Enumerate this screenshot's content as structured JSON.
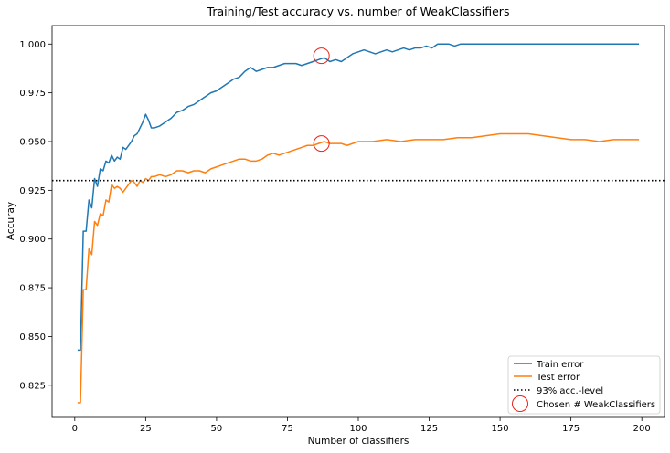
{
  "chart_data": {
    "type": "line",
    "title": "Training/Test accuracy vs. number of WeakClassifiers",
    "xlabel": "Number of classifiers",
    "ylabel": "Accuray",
    "xlim": [
      -8,
      208
    ],
    "ylim": [
      0.8085,
      1.0095
    ],
    "xticks": [
      0,
      25,
      50,
      75,
      100,
      125,
      150,
      175,
      200
    ],
    "yticks": [
      0.825,
      0.85,
      0.875,
      0.9,
      0.925,
      0.95,
      0.975,
      1.0
    ],
    "ytick_labels": [
      "0.825",
      "0.850",
      "0.875",
      "0.900",
      "0.925",
      "0.950",
      "0.975",
      "1.000"
    ],
    "grid": false,
    "legend_position": "lower-right",
    "series": [
      {
        "name": "Train error",
        "color": "#1f77b4",
        "x": [
          1,
          2,
          3,
          4,
          5,
          6,
          7,
          8,
          9,
          10,
          11,
          12,
          13,
          14,
          15,
          16,
          17,
          18,
          19,
          20,
          21,
          22,
          23,
          24,
          25,
          26,
          27,
          28,
          30,
          32,
          34,
          36,
          38,
          40,
          42,
          44,
          46,
          48,
          50,
          52,
          54,
          56,
          58,
          60,
          62,
          64,
          66,
          68,
          70,
          72,
          74,
          76,
          78,
          80,
          82,
          84,
          86,
          88,
          90,
          92,
          94,
          96,
          98,
          100,
          102,
          104,
          106,
          108,
          110,
          112,
          114,
          116,
          118,
          120,
          122,
          124,
          126,
          128,
          130,
          132,
          134,
          136,
          138,
          140,
          160,
          180,
          199
        ],
        "values": [
          0.843,
          0.843,
          0.904,
          0.904,
          0.92,
          0.916,
          0.931,
          0.927,
          0.936,
          0.935,
          0.94,
          0.939,
          0.943,
          0.94,
          0.942,
          0.941,
          0.947,
          0.946,
          0.948,
          0.95,
          0.953,
          0.954,
          0.957,
          0.96,
          0.964,
          0.961,
          0.957,
          0.957,
          0.958,
          0.96,
          0.962,
          0.965,
          0.966,
          0.968,
          0.969,
          0.971,
          0.973,
          0.975,
          0.976,
          0.978,
          0.98,
          0.982,
          0.983,
          0.986,
          0.988,
          0.986,
          0.987,
          0.988,
          0.988,
          0.989,
          0.99,
          0.99,
          0.99,
          0.989,
          0.99,
          0.991,
          0.992,
          0.993,
          0.991,
          0.992,
          0.991,
          0.993,
          0.995,
          0.996,
          0.997,
          0.996,
          0.995,
          0.996,
          0.997,
          0.996,
          0.997,
          0.998,
          0.997,
          0.998,
          0.998,
          0.999,
          0.998,
          1.0,
          1.0,
          1.0,
          0.999,
          1.0,
          1.0,
          1.0,
          1.0,
          1.0,
          1.0
        ]
      },
      {
        "name": "Test error",
        "color": "#ff7f0e",
        "x": [
          1,
          2,
          3,
          4,
          5,
          6,
          7,
          8,
          9,
          10,
          11,
          12,
          13,
          14,
          15,
          16,
          17,
          18,
          19,
          20,
          21,
          22,
          23,
          24,
          25,
          26,
          27,
          28,
          30,
          32,
          34,
          36,
          38,
          40,
          42,
          44,
          46,
          48,
          50,
          52,
          54,
          56,
          58,
          60,
          62,
          64,
          66,
          68,
          70,
          72,
          74,
          76,
          78,
          80,
          82,
          84,
          86,
          88,
          90,
          92,
          94,
          96,
          98,
          100,
          105,
          110,
          115,
          120,
          125,
          130,
          135,
          140,
          145,
          150,
          155,
          160,
          165,
          170,
          175,
          180,
          185,
          190,
          195,
          199
        ],
        "values": [
          0.816,
          0.816,
          0.874,
          0.874,
          0.895,
          0.892,
          0.909,
          0.907,
          0.913,
          0.912,
          0.92,
          0.919,
          0.928,
          0.926,
          0.927,
          0.926,
          0.924,
          0.926,
          0.928,
          0.93,
          0.929,
          0.927,
          0.93,
          0.929,
          0.931,
          0.93,
          0.932,
          0.932,
          0.933,
          0.932,
          0.933,
          0.935,
          0.935,
          0.934,
          0.935,
          0.935,
          0.934,
          0.936,
          0.937,
          0.938,
          0.939,
          0.94,
          0.941,
          0.941,
          0.94,
          0.94,
          0.941,
          0.943,
          0.944,
          0.943,
          0.944,
          0.945,
          0.946,
          0.947,
          0.948,
          0.948,
          0.949,
          0.95,
          0.949,
          0.949,
          0.949,
          0.948,
          0.949,
          0.95,
          0.95,
          0.951,
          0.95,
          0.951,
          0.951,
          0.951,
          0.952,
          0.952,
          0.953,
          0.954,
          0.954,
          0.954,
          0.953,
          0.952,
          0.951,
          0.951,
          0.95,
          0.951,
          0.951,
          0.951
        ]
      }
    ],
    "reference_line": {
      "name": "93% acc.-level",
      "y": 0.93,
      "color": "#000000"
    },
    "markers": {
      "name": "Chosen # WeakClassifiers",
      "color": "#e8231a",
      "points": [
        {
          "x": 87,
          "y": 0.994
        },
        {
          "x": 87,
          "y": 0.949
        }
      ]
    }
  }
}
